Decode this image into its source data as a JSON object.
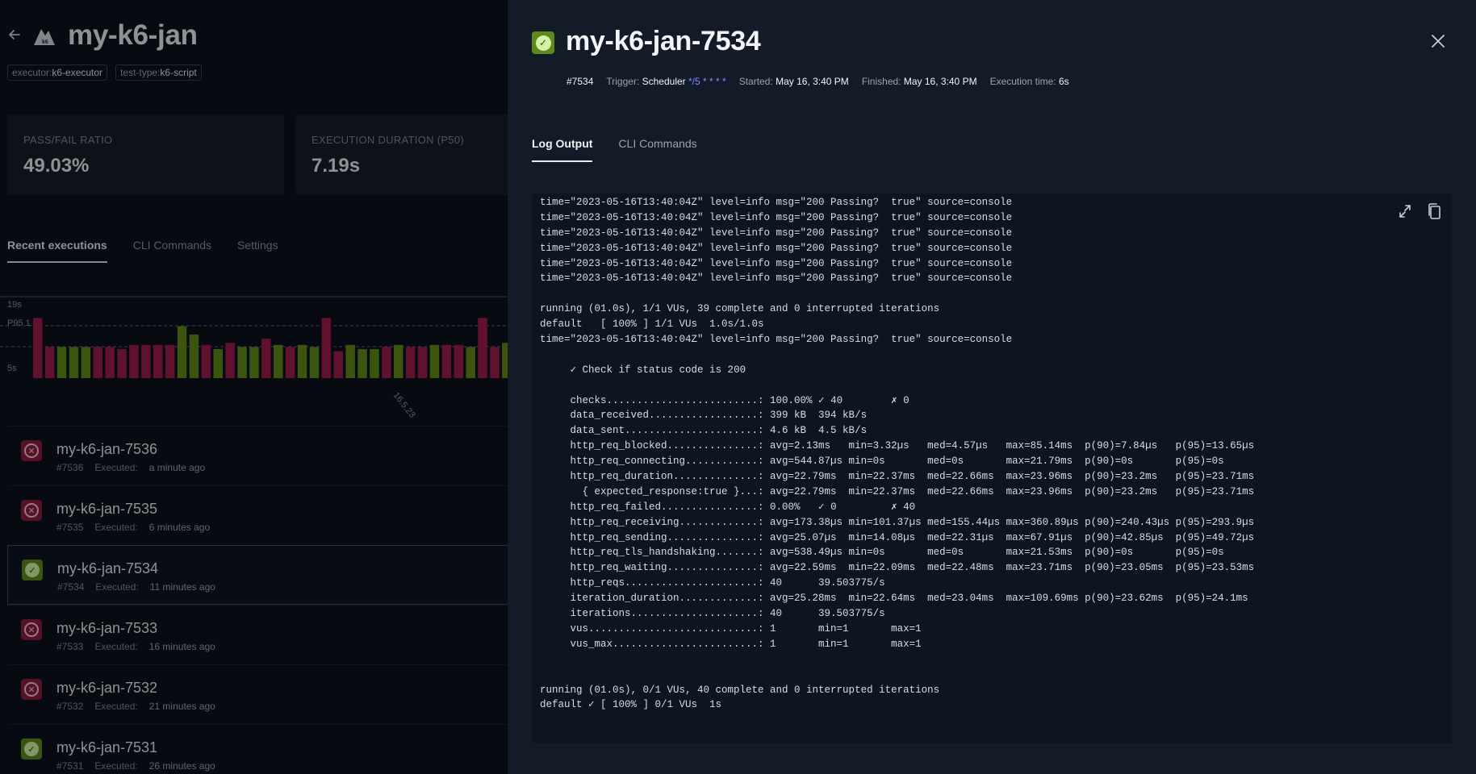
{
  "background": {
    "test_name": "my-k6-jan",
    "labels": [
      {
        "key": "executor:",
        "value": "k6-executor"
      },
      {
        "key": "test-type:",
        "value": "k6-script"
      }
    ],
    "metrics": [
      {
        "label": "PASS/FAIL RATIO",
        "value": "49.03%"
      },
      {
        "label": "EXECUTION DURATION (P50)",
        "value": "7.19s"
      }
    ],
    "tabs": [
      "Recent executions",
      "CLI Commands",
      "Settings"
    ],
    "executions": [
      {
        "name": "my-k6-jan-7536",
        "id": "#7536",
        "executed_label": "Executed:",
        "ago": "a minute ago",
        "status": "failed"
      },
      {
        "name": "my-k6-jan-7535",
        "id": "#7535",
        "executed_label": "Executed:",
        "ago": "6 minutes ago",
        "status": "failed"
      },
      {
        "name": "my-k6-jan-7534",
        "id": "#7534",
        "executed_label": "Executed:",
        "ago": "11 minutes ago",
        "status": "passed"
      },
      {
        "name": "my-k6-jan-7533",
        "id": "#7533",
        "executed_label": "Executed:",
        "ago": "16 minutes ago",
        "status": "failed"
      },
      {
        "name": "my-k6-jan-7532",
        "id": "#7532",
        "executed_label": "Executed:",
        "ago": "21 minutes ago",
        "status": "failed"
      },
      {
        "name": "my-k6-jan-7531",
        "id": "#7531",
        "executed_label": "Executed:",
        "ago": "26 minutes ago",
        "status": "passed"
      }
    ]
  },
  "chart_data": {
    "type": "bar",
    "y_tick_labels": [
      "19s",
      "P95 1",
      "5s"
    ],
    "x_tick_label": "16.5.23",
    "colors": {
      "failed": "#9c1c4a",
      "passed": "#5f8a1c"
    },
    "ylim": [
      0,
      20
    ],
    "series": [
      {
        "status": "failed",
        "values": [
          14.5,
          7.5
        ]
      },
      {
        "status": "passed",
        "values": [
          7.5,
          7.5,
          7.5
        ]
      },
      {
        "status": "failed",
        "values": [
          7.5,
          7.5,
          7,
          8,
          8,
          8,
          8
        ]
      },
      {
        "status": "passed",
        "values": [
          12.5,
          10.5
        ]
      },
      {
        "status": "failed",
        "values": [
          8
        ]
      },
      {
        "status": "passed",
        "values": [
          7
        ]
      },
      {
        "status": "failed",
        "values": [
          8.5
        ]
      },
      {
        "status": "passed",
        "values": [
          7.5,
          7.5
        ]
      },
      {
        "status": "failed",
        "values": [
          9.5
        ]
      },
      {
        "status": "passed",
        "values": [
          8
        ]
      },
      {
        "status": "failed",
        "values": [
          7.5
        ]
      },
      {
        "status": "passed",
        "values": [
          8,
          7.5
        ]
      },
      {
        "status": "failed",
        "values": [
          14.5,
          6.5
        ]
      },
      {
        "status": "passed",
        "values": [
          8,
          7,
          7
        ]
      },
      {
        "status": "failed",
        "values": [
          7.5
        ]
      },
      {
        "status": "passed",
        "values": [
          8
        ]
      },
      {
        "status": "failed",
        "values": [
          7.5,
          7.5
        ]
      },
      {
        "status": "passed",
        "values": [
          8
        ]
      },
      {
        "status": "failed",
        "values": [
          8,
          8
        ]
      },
      {
        "status": "passed",
        "values": [
          7.5
        ]
      },
      {
        "status": "failed",
        "values": [
          14.5,
          7.5
        ]
      },
      {
        "status": "passed",
        "values": [
          8.5
        ]
      },
      {
        "status": "failed",
        "values": [
          9
        ]
      }
    ]
  },
  "drawer": {
    "title": "my-k6-jan-7534",
    "status": "passed",
    "meta": {
      "number": "#7534",
      "trigger_label": "Trigger:",
      "trigger_value": "Scheduler",
      "cron": "*/5 * * * *",
      "started_label": "Started:",
      "started_value": "May 16, 3:40 PM",
      "finished_label": "Finished:",
      "finished_value": "May 16, 3:40 PM",
      "exec_time_label": "Execution time:",
      "exec_time_value": "6s"
    },
    "tabs": [
      "Log Output",
      "CLI Commands"
    ],
    "log_lines": [
      "time=\"2023-05-16T13:40:04Z\" level=info msg=\"200 Passing?  true\" source=console",
      "time=\"2023-05-16T13:40:04Z\" level=info msg=\"200 Passing?  true\" source=console",
      "time=\"2023-05-16T13:40:04Z\" level=info msg=\"200 Passing?  true\" source=console",
      "time=\"2023-05-16T13:40:04Z\" level=info msg=\"200 Passing?  true\" source=console",
      "time=\"2023-05-16T13:40:04Z\" level=info msg=\"200 Passing?  true\" source=console",
      "time=\"2023-05-16T13:40:04Z\" level=info msg=\"200 Passing?  true\" source=console",
      "",
      "running (01.0s), 1/1 VUs, 39 complete and 0 interrupted iterations",
      "default   [ 100% ] 1/1 VUs  1.0s/1.0s",
      "time=\"2023-05-16T13:40:04Z\" level=info msg=\"200 Passing?  true\" source=console",
      "",
      "     ✓ Check if status code is 200",
      "",
      "     checks.........................: 100.00% ✓ 40        ✗ 0",
      "     data_received..................: 399 kB  394 kB/s",
      "     data_sent......................: 4.6 kB  4.5 kB/s",
      "     http_req_blocked...............: avg=2.13ms   min=3.32µs   med=4.57µs   max=85.14ms  p(90)=7.84µs   p(95)=13.65µs",
      "     http_req_connecting............: avg=544.87µs min=0s       med=0s       max=21.79ms  p(90)=0s       p(95)=0s",
      "     http_req_duration..............: avg=22.79ms  min=22.37ms  med=22.66ms  max=23.96ms  p(90)=23.2ms   p(95)=23.71ms",
      "       { expected_response:true }...: avg=22.79ms  min=22.37ms  med=22.66ms  max=23.96ms  p(90)=23.2ms   p(95)=23.71ms",
      "     http_req_failed................: 0.00%   ✓ 0         ✗ 40",
      "     http_req_receiving.............: avg=173.38µs min=101.37µs med=155.44µs max=360.89µs p(90)=240.43µs p(95)=293.9µs",
      "     http_req_sending...............: avg=25.07µs  min=14.08µs  med=22.31µs  max=67.91µs  p(90)=42.85µs  p(95)=49.72µs",
      "     http_req_tls_handshaking.......: avg=538.49µs min=0s       med=0s       max=21.53ms  p(90)=0s       p(95)=0s",
      "     http_req_waiting...............: avg=22.59ms  min=22.09ms  med=22.48ms  max=23.71ms  p(90)=23.05ms  p(95)=23.53ms",
      "     http_reqs......................: 40      39.503775/s",
      "     iteration_duration.............: avg=25.28ms  min=22.64ms  med=23.04ms  max=109.69ms p(90)=23.62ms  p(95)=24.1ms",
      "     iterations.....................: 40      39.503775/s",
      "     vus............................: 1       min=1       max=1",
      "     vus_max........................: 1       min=1       max=1",
      "",
      "",
      "running (01.0s), 0/1 VUs, 40 complete and 0 interrupted iterations",
      "default ✓ [ 100% ] 0/1 VUs  1s"
    ]
  }
}
